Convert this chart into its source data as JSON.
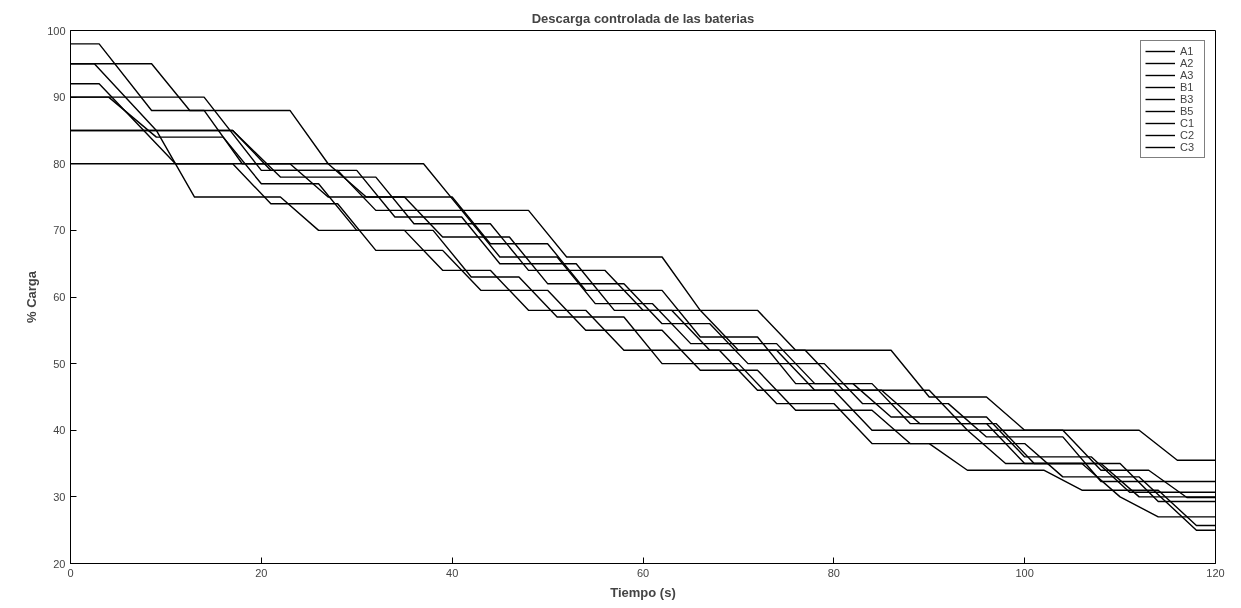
{
  "chart_data": {
    "type": "line",
    "title": "Descarga controlada de las baterias",
    "xlabel": "Tiempo (s)",
    "ylabel": "% Carga",
    "xlim": [
      0,
      120
    ],
    "xticks": [
      0,
      20,
      40,
      60,
      80,
      100,
      120
    ],
    "ylim": [
      20,
      100
    ],
    "yticks": [
      20,
      30,
      40,
      50,
      60,
      70,
      80,
      90,
      100
    ],
    "grid": false,
    "legend": "top right",
    "marker": "none",
    "line_style": "solid",
    "series": [
      {
        "name": "A1",
        "color": "#000000",
        "x": [
          0,
          3,
          8.5,
          14,
          18,
          27,
          31,
          40,
          44,
          50,
          54,
          62,
          66,
          72,
          76,
          84,
          88,
          96,
          100,
          108,
          112,
          120
        ],
        "values": [
          98,
          98,
          88,
          88,
          80,
          80,
          75,
          75,
          68,
          68,
          61,
          61,
          54,
          54,
          47,
          47,
          41,
          41,
          35,
          35,
          30,
          30
        ]
      },
      {
        "name": "A2",
        "color": "#000000",
        "x": [
          0,
          8.5,
          12.5,
          23,
          27,
          37,
          41,
          48,
          52,
          62,
          66,
          72,
          76,
          86,
          90,
          96,
          100,
          112,
          116,
          120
        ],
        "values": [
          95,
          95,
          88,
          88,
          80,
          80,
          73,
          73,
          66,
          66,
          58,
          58,
          52,
          52,
          45,
          45,
          40,
          40,
          35.5,
          35.5
        ]
      },
      {
        "name": "A3",
        "color": "#000000",
        "x": [
          0,
          2.5,
          9,
          17,
          21,
          30,
          34,
          41,
          45,
          53,
          57,
          63,
          67,
          74,
          78,
          85,
          89,
          97,
          101,
          110,
          114,
          120
        ],
        "values": [
          95,
          95,
          85,
          85,
          79,
          79,
          72,
          72,
          65,
          65,
          58,
          58,
          52,
          52,
          46,
          46,
          41,
          41,
          35,
          35,
          29.3,
          29.3
        ]
      },
      {
        "name": "B1",
        "color": "#000000",
        "x": [
          0,
          3,
          11,
          23,
          27,
          35,
          39,
          46,
          50,
          58,
          62,
          67,
          71,
          79,
          83,
          92,
          96,
          104,
          108,
          120
        ],
        "values": [
          92,
          92,
          80,
          80,
          75,
          75,
          69,
          69,
          62,
          62,
          56,
          56,
          50,
          50,
          44,
          44,
          39,
          39,
          32.3,
          32.3
        ]
      },
      {
        "name": "B3",
        "color": "#000000",
        "x": [
          0,
          14,
          20,
          28,
          32,
          41,
          45,
          51,
          55,
          61,
          65,
          74,
          78,
          82,
          86,
          96,
          100,
          107,
          111,
          120
        ],
        "values": [
          90,
          90,
          79,
          79,
          73,
          73,
          66,
          66,
          59,
          59,
          53,
          53,
          47,
          47,
          42,
          42,
          36,
          36,
          30.7,
          30.7
        ]
      },
      {
        "name": "B5",
        "color": "#000000",
        "x": [
          0,
          17,
          22,
          32,
          36,
          44,
          48,
          56,
          60,
          66,
          70,
          77,
          81,
          90,
          94,
          104,
          108,
          113,
          117,
          120
        ],
        "values": [
          85,
          85,
          78,
          78,
          71,
          71,
          64,
          64,
          58,
          58,
          52,
          52,
          46,
          46,
          40,
          40,
          34,
          34,
          29.9,
          29.9
        ]
      },
      {
        "name": "C1",
        "color": "#000000",
        "x": [
          0,
          17,
          21,
          28,
          32,
          39,
          43,
          50,
          54,
          62,
          66,
          72,
          76,
          84,
          88,
          100,
          104,
          112,
          118,
          120
        ],
        "values": [
          80,
          80,
          74,
          74,
          67,
          67,
          61,
          61,
          55,
          55,
          49,
          49,
          43,
          43,
          38,
          38,
          33,
          33,
          25,
          25
        ]
      },
      {
        "name": "C2",
        "color": "#000000",
        "x": [
          0,
          9,
          13,
          22,
          26,
          35,
          39,
          44,
          48,
          54,
          58,
          68,
          72,
          80,
          84,
          94,
          98,
          106,
          110,
          114,
          120
        ],
        "values": [
          85,
          85,
          75,
          75,
          70,
          70,
          64,
          64,
          58,
          58,
          52,
          52,
          46,
          46,
          40,
          40,
          35,
          35,
          30,
          27,
          27
        ]
      },
      {
        "name": "C3",
        "color": "#000000",
        "x": [
          0,
          4,
          9,
          16,
          20,
          26,
          30,
          38,
          42,
          47,
          51,
          58,
          62,
          70,
          74,
          80,
          84,
          90,
          94,
          102,
          106,
          114,
          118,
          120
        ],
        "values": [
          90,
          90,
          84,
          84,
          77,
          77,
          70,
          70,
          63,
          63,
          57,
          57,
          50,
          50,
          44,
          44,
          38,
          38,
          34,
          34,
          31,
          31,
          25.7,
          25.7
        ]
      }
    ]
  }
}
